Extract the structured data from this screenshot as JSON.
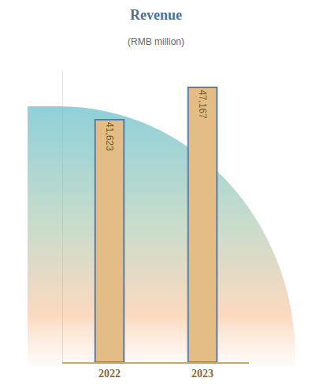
{
  "chart_data": {
    "type": "bar",
    "title": "Revenue",
    "subtitle": "(RMB million)",
    "categories": [
      "2022",
      "2023"
    ],
    "values": [
      41623,
      47167
    ],
    "value_labels": [
      "41,623",
      "47,167"
    ],
    "data_labels": true,
    "color": "#e3bd85",
    "ylim": [
      0,
      50000
    ],
    "tick_labels": "x",
    "grid": false
  }
}
